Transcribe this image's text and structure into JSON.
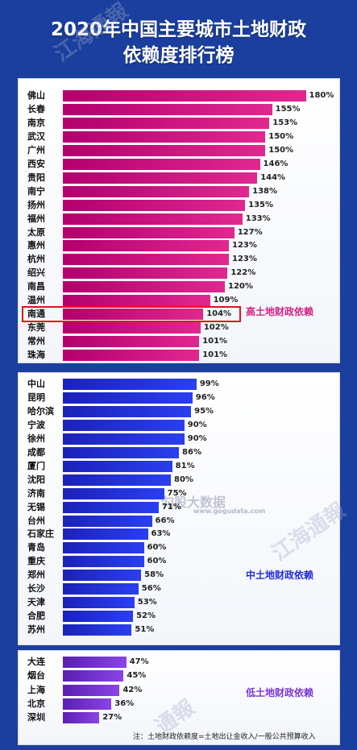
{
  "title": {
    "line1": "2020年中国主要城市土地财政",
    "line2": "依赖度排行榜"
  },
  "chart_data": {
    "type": "bar",
    "orientation": "horizontal",
    "unit": "%",
    "highlight": "南通",
    "groups": [
      {
        "name": "高土地财政依赖",
        "color": "#d61f85",
        "categories": [
          "佛山",
          "长春",
          "南京",
          "武汉",
          "广州",
          "西安",
          "贵阳",
          "南宁",
          "扬州",
          "福州",
          "太原",
          "惠州",
          "杭州",
          "绍兴",
          "南昌",
          "温州",
          "南通",
          "东莞",
          "常州",
          "珠海"
        ],
        "values": [
          180,
          155,
          153,
          150,
          150,
          146,
          144,
          138,
          135,
          133,
          127,
          123,
          123,
          122,
          120,
          109,
          104,
          102,
          101,
          101
        ],
        "labels": [
          "180%",
          "155%",
          "153%",
          "150%",
          "150%",
          "146%",
          "144%",
          "138%",
          "135%",
          "133%",
          "127%",
          "123%",
          "123%",
          "122%",
          "120%",
          "109%",
          "104%",
          "102%",
          "101%",
          "101%"
        ]
      },
      {
        "name": "中土地财政依赖",
        "color": "#1f2ce0",
        "categories": [
          "中山",
          "昆明",
          "哈尔滨",
          "宁波",
          "徐州",
          "成都",
          "厦门",
          "沈阳",
          "济南",
          "无锡",
          "台州",
          "石家庄",
          "青岛",
          "重庆",
          "郑州",
          "长沙",
          "天津",
          "合肥",
          "苏州"
        ],
        "values": [
          99,
          96,
          95,
          90,
          90,
          86,
          81,
          80,
          75,
          71,
          66,
          63,
          60,
          60,
          58,
          56,
          53,
          52,
          51
        ],
        "labels": [
          "99%",
          "96%",
          "95%",
          "90%",
          "90%",
          "86%",
          "81%",
          "80%",
          "75%",
          "71%",
          "66%",
          "63%",
          "60%",
          "60%",
          "58%",
          "56%",
          "53%",
          "52%",
          "51%"
        ]
      },
      {
        "name": "低土地财政依赖",
        "color": "#7a35d6",
        "categories": [
          "大连",
          "烟台",
          "上海",
          "北京",
          "深圳"
        ],
        "values": [
          47,
          45,
          42,
          36,
          27
        ],
        "labels": [
          "47%",
          "45%",
          "42%",
          "36%",
          "27%"
        ]
      }
    ]
  },
  "footnote": "注：土地财政依赖度=土地出让金收入/一般公共预算收入",
  "watermarks": [
    "江海通報",
    "通報",
    "勾股大数据",
    "www.gogudata.com"
  ]
}
